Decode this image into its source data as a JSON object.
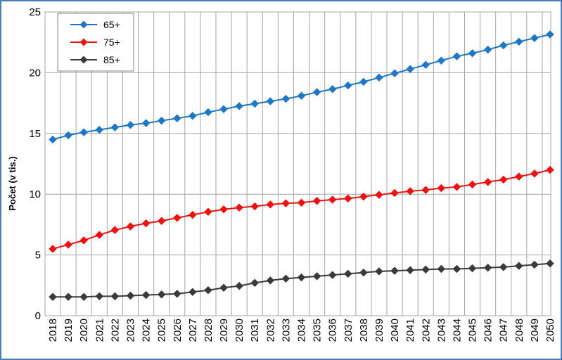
{
  "chart_data": {
    "type": "line",
    "title": "",
    "xlabel": "",
    "ylabel": "Počet (v tis.)",
    "ylim": [
      0,
      25
    ],
    "yticks": [
      0,
      5,
      10,
      15,
      20,
      25
    ],
    "grid": "vertical and horizontal",
    "legend_position": "top-left",
    "categories": [
      "2018",
      "2019",
      "2020",
      "2021",
      "2022",
      "2023",
      "2024",
      "2025",
      "2026",
      "2027",
      "2028",
      "2029",
      "2030",
      "2031",
      "2032",
      "2033",
      "2034",
      "2035",
      "2036",
      "2037",
      "2038",
      "2039",
      "2040",
      "2041",
      "2042",
      "2043",
      "2044",
      "2045",
      "2046",
      "2047",
      "2048",
      "2049",
      "2050"
    ],
    "series": [
      {
        "name": "65+",
        "color": "#1f77c8",
        "marker": "diamond",
        "values": [
          14.5,
          14.85,
          15.1,
          15.3,
          15.5,
          15.7,
          15.85,
          16.05,
          16.25,
          16.45,
          16.75,
          17.0,
          17.25,
          17.45,
          17.65,
          17.85,
          18.1,
          18.4,
          18.65,
          18.95,
          19.25,
          19.6,
          19.95,
          20.3,
          20.65,
          21.0,
          21.35,
          21.6,
          21.9,
          22.25,
          22.55,
          22.85,
          23.15
        ]
      },
      {
        "name": "75+",
        "color": "#ee1111",
        "marker": "diamond",
        "values": [
          5.5,
          5.85,
          6.2,
          6.65,
          7.05,
          7.35,
          7.6,
          7.8,
          8.05,
          8.3,
          8.55,
          8.75,
          8.9,
          9.0,
          9.15,
          9.25,
          9.3,
          9.45,
          9.55,
          9.65,
          9.8,
          9.95,
          10.1,
          10.25,
          10.35,
          10.5,
          10.6,
          10.8,
          11.0,
          11.2,
          11.45,
          11.7,
          12.0
        ]
      },
      {
        "name": "85+",
        "color": "#3a3a3a",
        "marker": "diamond",
        "values": [
          1.55,
          1.55,
          1.55,
          1.6,
          1.6,
          1.65,
          1.7,
          1.75,
          1.8,
          1.95,
          2.1,
          2.3,
          2.45,
          2.7,
          2.9,
          3.05,
          3.15,
          3.25,
          3.35,
          3.45,
          3.55,
          3.65,
          3.7,
          3.75,
          3.8,
          3.85,
          3.85,
          3.9,
          3.95,
          4.0,
          4.1,
          4.2,
          4.3
        ]
      }
    ]
  }
}
